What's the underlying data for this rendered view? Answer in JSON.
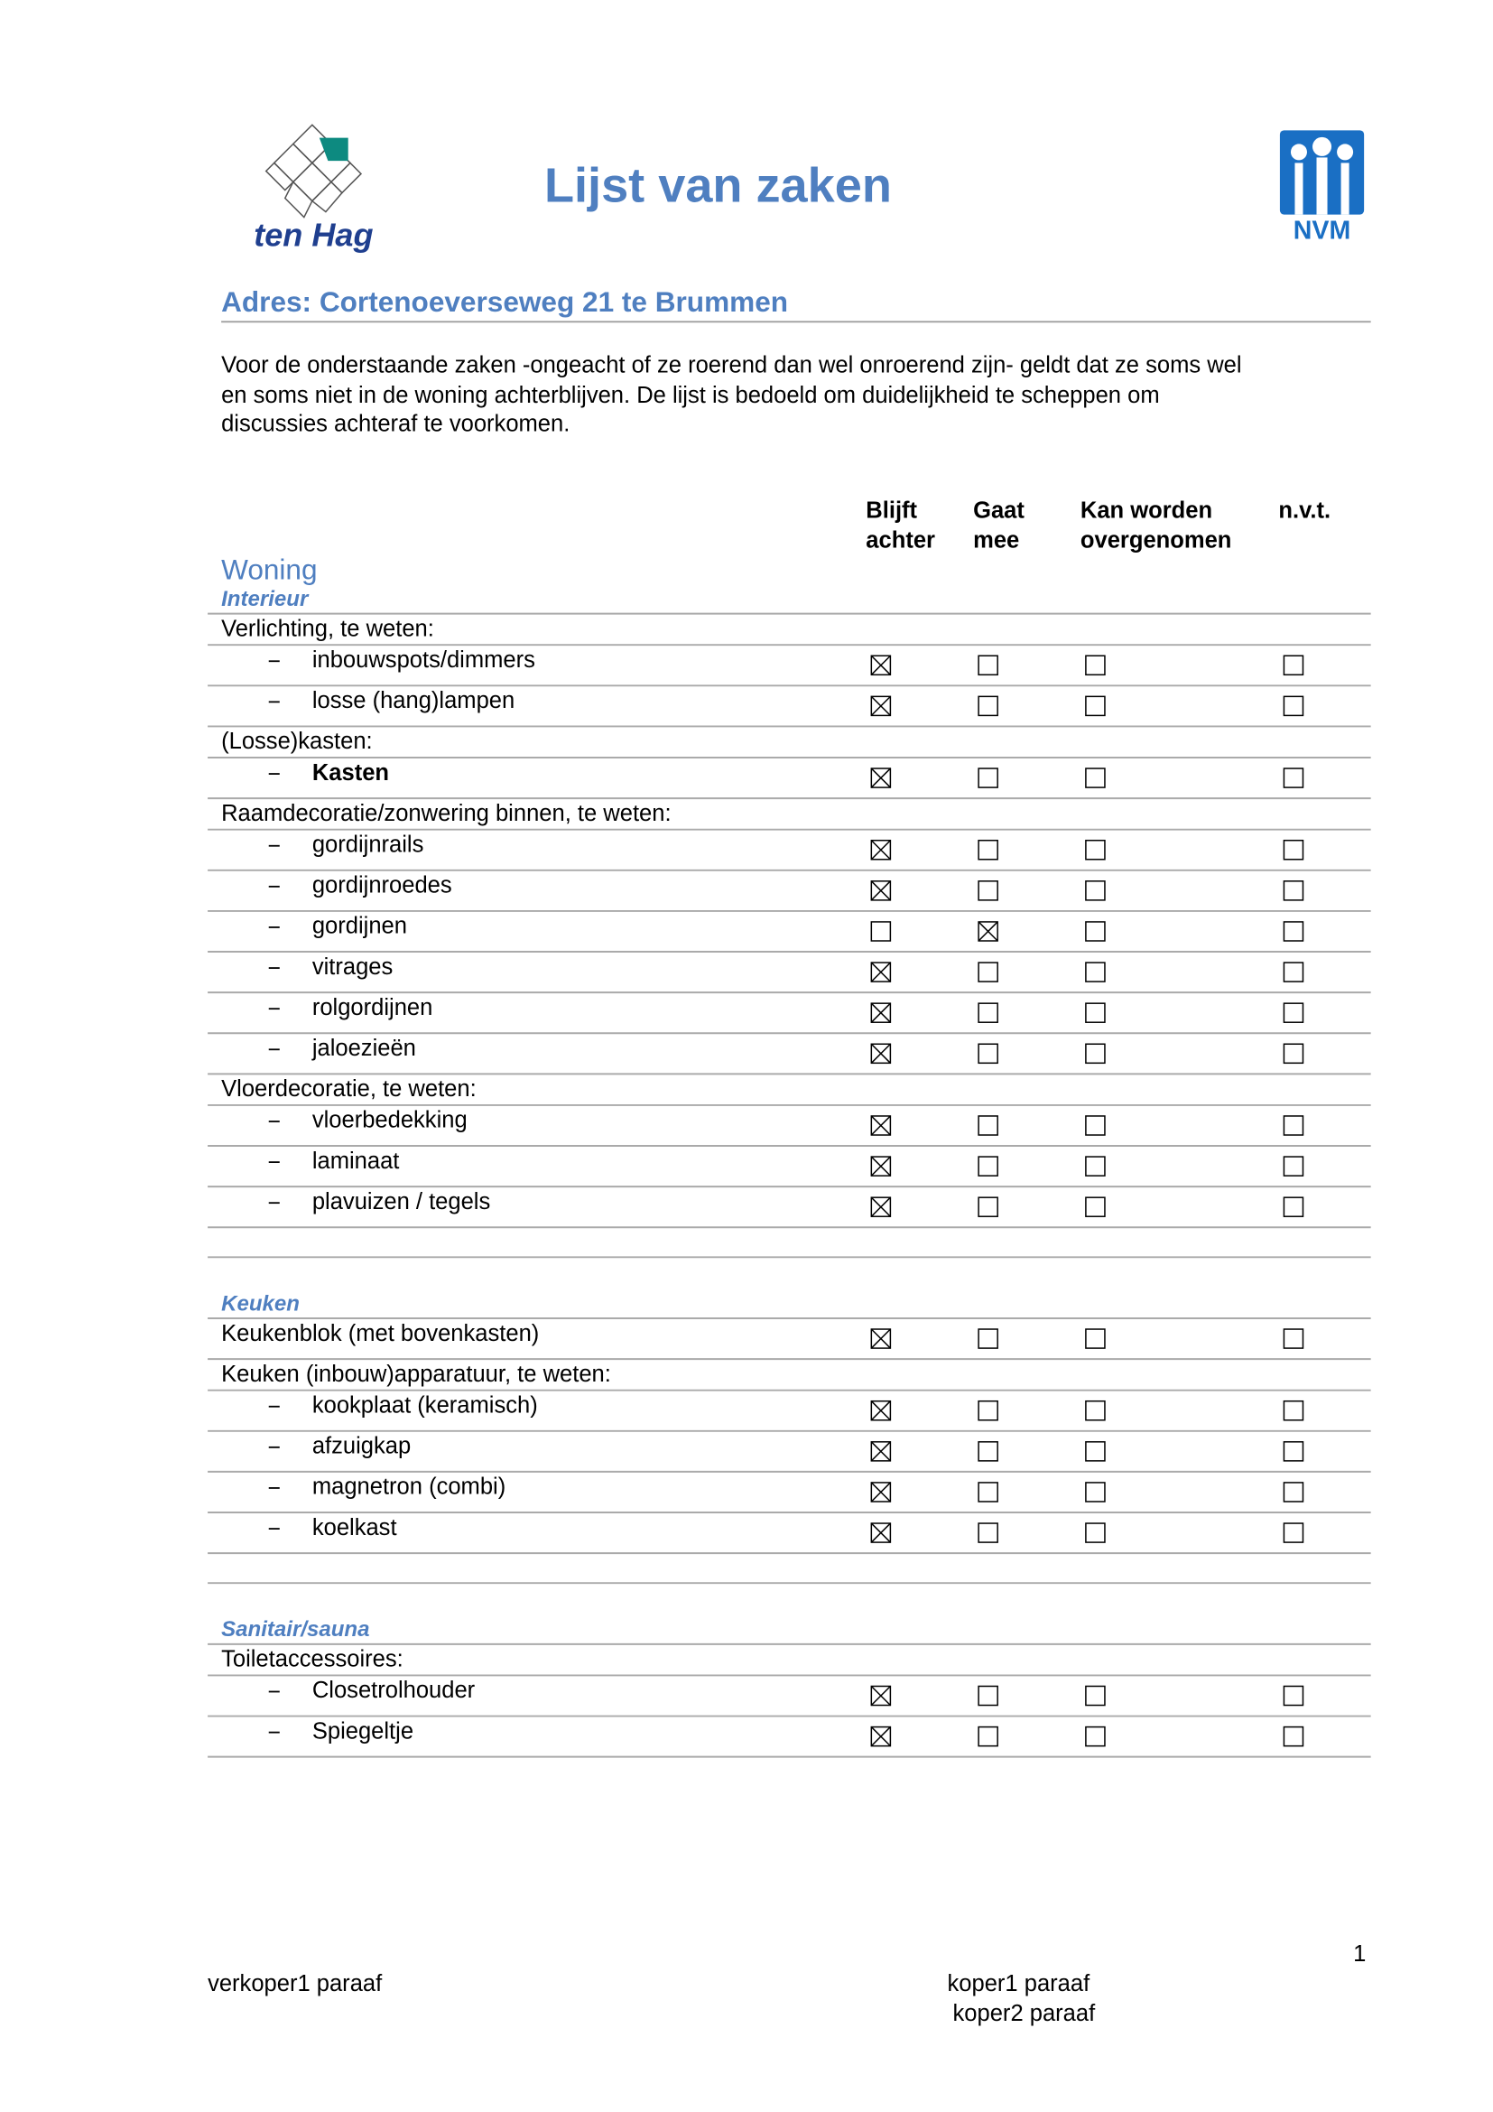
{
  "header": {
    "title": "Lijst van zaken",
    "logo_left": "ten Hag",
    "logo_right": "NVM"
  },
  "address": "Adres: Cortenoeverseweg 21 te Brummen",
  "intro": [
    "Voor de onderstaande zaken -ongeacht of ze roerend dan wel onroerend zijn- geldt dat ze soms wel",
    "en soms niet in de woning achterblijven. De lijst is bedoeld om duidelijkheid te scheppen om",
    "discussies achteraf te voorkomen."
  ],
  "columns": [
    [
      "Blijft",
      "achter"
    ],
    [
      "Gaat",
      "mee"
    ],
    [
      "Kan worden",
      "overgenomen"
    ],
    [
      "n.v.t."
    ]
  ],
  "main_heading": "Woning",
  "sections": [
    {
      "title": "Interieur",
      "rows": [
        {
          "label": "Verlichting, te weten:"
        },
        {
          "label": "inbouwspots/dimmers",
          "dash": true,
          "checks": [
            true,
            false,
            false,
            false
          ]
        },
        {
          "label": "losse (hang)lampen",
          "dash": true,
          "checks": [
            true,
            false,
            false,
            false
          ]
        },
        {
          "label": "(Losse)kasten:"
        },
        {
          "label": "Kasten",
          "dash": true,
          "bold": true,
          "checks": [
            true,
            false,
            false,
            false
          ]
        },
        {
          "label": "Raamdecoratie/zonwering binnen, te weten:"
        },
        {
          "label": "gordijnrails",
          "dash": true,
          "checks": [
            true,
            false,
            false,
            false
          ]
        },
        {
          "label": "gordijnroedes",
          "dash": true,
          "checks": [
            true,
            false,
            false,
            false
          ]
        },
        {
          "label": "gordijnen",
          "dash": true,
          "checks": [
            false,
            true,
            false,
            false
          ]
        },
        {
          "label": "vitrages",
          "dash": true,
          "checks": [
            true,
            false,
            false,
            false
          ]
        },
        {
          "label": "rolgordijnen",
          "dash": true,
          "checks": [
            true,
            false,
            false,
            false
          ]
        },
        {
          "label": "jaloezieën",
          "dash": true,
          "checks": [
            true,
            false,
            false,
            false
          ]
        },
        {
          "label": "Vloerdecoratie, te weten:"
        },
        {
          "label": "vloerbedekking",
          "dash": true,
          "checks": [
            true,
            false,
            false,
            false
          ]
        },
        {
          "label": "laminaat",
          "dash": true,
          "checks": [
            true,
            false,
            false,
            false
          ]
        },
        {
          "label": "plavuizen / tegels",
          "dash": true,
          "checks": [
            true,
            false,
            false,
            false
          ]
        }
      ]
    },
    {
      "title": "Keuken",
      "rows": [
        {
          "label": "Keukenblok (met bovenkasten)",
          "checks": [
            true,
            false,
            false,
            false
          ]
        },
        {
          "label": "Keuken (inbouw)apparatuur, te weten:"
        },
        {
          "label": "kookplaat (keramisch)",
          "dash": true,
          "checks": [
            true,
            false,
            false,
            false
          ]
        },
        {
          "label": "afzuigkap",
          "dash": true,
          "checks": [
            true,
            false,
            false,
            false
          ]
        },
        {
          "label": "magnetron (combi)",
          "dash": true,
          "checks": [
            true,
            false,
            false,
            false
          ]
        },
        {
          "label": "koelkast",
          "dash": true,
          "checks": [
            true,
            false,
            false,
            false
          ]
        }
      ]
    },
    {
      "title": "Sanitair/sauna",
      "rows": [
        {
          "label": "Toiletaccessoires:"
        },
        {
          "label": "Closetrolhouder",
          "dash": true,
          "checks": [
            true,
            false,
            false,
            false
          ]
        },
        {
          "label": "Spiegeltje",
          "dash": true,
          "checks": [
            true,
            false,
            false,
            false
          ]
        }
      ]
    }
  ],
  "footer": {
    "page_number": "1",
    "seller": "verkoper1 paraaf",
    "buyer1": "koper1 paraaf",
    "buyer2": "koper2 paraaf"
  }
}
